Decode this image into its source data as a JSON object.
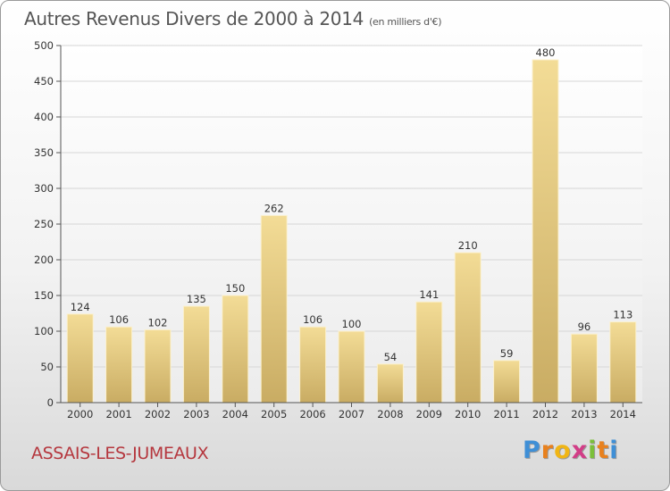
{
  "title": "Autres Revenus Divers de 2000 à 2014",
  "subtitle": "(en milliers d'€)",
  "commune": "ASSAIS-LES-JUMEAUX",
  "brand": {
    "letters": [
      "P",
      "r",
      "o",
      "x",
      "i",
      "t",
      "i"
    ],
    "colors": [
      "#3f8fd6",
      "#e8811e",
      "#f0b515",
      "#d23d87",
      "#7bbf3a",
      "#e8811e",
      "#3f8fd6"
    ]
  },
  "chart_data": {
    "type": "bar",
    "categories": [
      "2000",
      "2001",
      "2002",
      "2003",
      "2004",
      "2005",
      "2006",
      "2007",
      "2008",
      "2009",
      "2010",
      "2011",
      "2012",
      "2013",
      "2014"
    ],
    "values": [
      124,
      106,
      102,
      135,
      150,
      262,
      106,
      100,
      54,
      141,
      210,
      59,
      480,
      96,
      113
    ],
    "ylim": [
      0,
      500
    ],
    "yticks": [
      0,
      50,
      100,
      150,
      200,
      250,
      300,
      350,
      400,
      450,
      500
    ],
    "grid": true,
    "bar_color": "#e6c97a"
  }
}
